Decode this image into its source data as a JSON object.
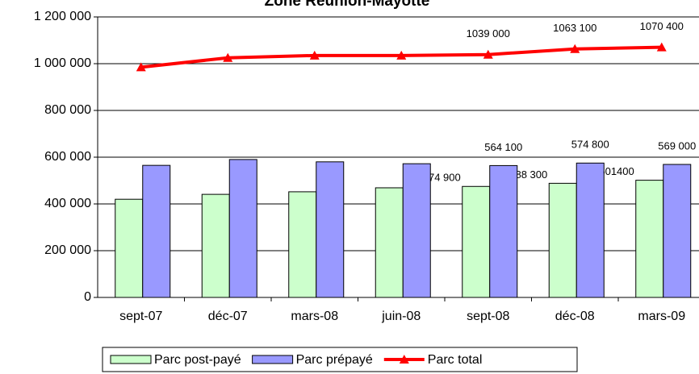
{
  "chart_data": {
    "type": "bar",
    "title": "Zone Réunion-Mayotte",
    "categories": [
      "sept-07",
      "déc-07",
      "mars-08",
      "juin-08",
      "sept-08",
      "déc-08",
      "mars-09"
    ],
    "series": [
      {
        "name": "Parc post-payé",
        "type": "bar",
        "color": "#ccffcc",
        "label_color": "#000000",
        "values": [
          420000,
          441000,
          452000,
          469000,
          474900,
          488300,
          501400
        ],
        "value_labels": [
          null,
          null,
          null,
          null,
          "474 900",
          "488 300",
          "501400"
        ]
      },
      {
        "name": "Parc prépayé",
        "type": "bar",
        "color": "#9999ff",
        "label_color": "#333399",
        "values": [
          565000,
          590000,
          580000,
          572000,
          564100,
          574800,
          569000
        ],
        "value_labels": [
          null,
          null,
          null,
          null,
          "564 100",
          "574 800",
          "569 000"
        ]
      },
      {
        "name": "Parc total",
        "type": "line",
        "color": "#ff0000",
        "label_color": "#ff0000",
        "values": [
          985000,
          1025000,
          1035000,
          1035000,
          1039000,
          1063100,
          1070400
        ],
        "value_labels": [
          null,
          null,
          null,
          null,
          "1039 000",
          "1063 100",
          "1070 400"
        ]
      }
    ],
    "ylim": [
      0,
      1200000
    ],
    "yticks": [
      0,
      {
        "value": 200000,
        "label": "200 000"
      },
      {
        "value": 400000,
        "label": "400 000"
      },
      {
        "value": 600000,
        "label": "600 000"
      },
      {
        "value": 800000,
        "label": "800 000"
      },
      {
        "value": 1000000,
        "label": "1 000 000"
      },
      {
        "value": 1200000,
        "label": "1 200 000"
      }
    ],
    "grid": true,
    "legend": "bottom"
  }
}
